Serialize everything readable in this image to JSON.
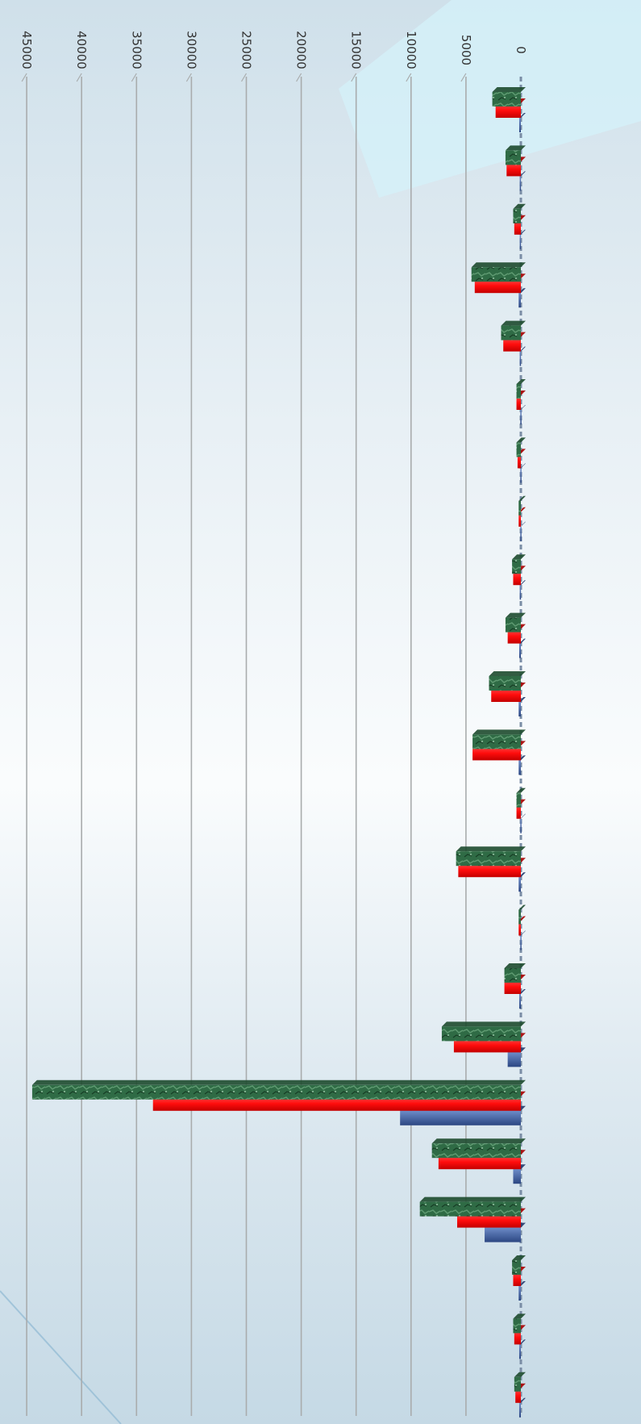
{
  "colors": {
    "background_light": "#f6f9fb",
    "background_blue": "#c9dde8",
    "background_accent": "#cdeef8",
    "grid": "#a9acad",
    "series_blue": "#3b5b9a",
    "series_red": "#ff1414",
    "series_green": "#2f6b45",
    "series_green_dark": "#1d4a2d"
  },
  "chart_data": {
    "type": "bar",
    "orientation": "horizontal",
    "rotation": "rotated 90 degrees clockwise",
    "title": "",
    "xlabel": "",
    "ylabel": "",
    "ylim": [
      0,
      45000
    ],
    "tick_labels": [
      "0",
      "5000",
      "10000",
      "15000",
      "20000",
      "25000",
      "30000",
      "35000",
      "40000",
      "45000"
    ],
    "grid": true,
    "legend": "none",
    "categories": [
      "",
      "",
      "",
      "",
      "",
      "",
      "",
      "",
      "",
      "",
      "",
      "",
      "",
      "",
      "",
      "",
      "",
      "",
      "",
      "",
      "",
      "",
      ""
    ],
    "series": [
      {
        "color": "#3b5b9a",
        "values": [
          150,
          100,
          100,
          200,
          100,
          50,
          50,
          50,
          100,
          150,
          200,
          200,
          50,
          200,
          50,
          150,
          1200,
          11000,
          700,
          3300,
          200,
          150,
          150
        ]
      },
      {
        "color": "#ff1414",
        "values": [
          2300,
          1300,
          600,
          4200,
          1600,
          400,
          300,
          200,
          700,
          1200,
          2700,
          4400,
          400,
          5700,
          200,
          1500,
          6100,
          33500,
          7500,
          5800,
          700,
          600,
          500
        ]
      },
      {
        "color": "#2f6b45",
        "values": [
          2600,
          1400,
          700,
          4500,
          1800,
          400,
          400,
          200,
          800,
          1400,
          2900,
          4400,
          400,
          5900,
          200,
          1500,
          7200,
          44500,
          8100,
          9200,
          800,
          700,
          600
        ]
      }
    ]
  }
}
